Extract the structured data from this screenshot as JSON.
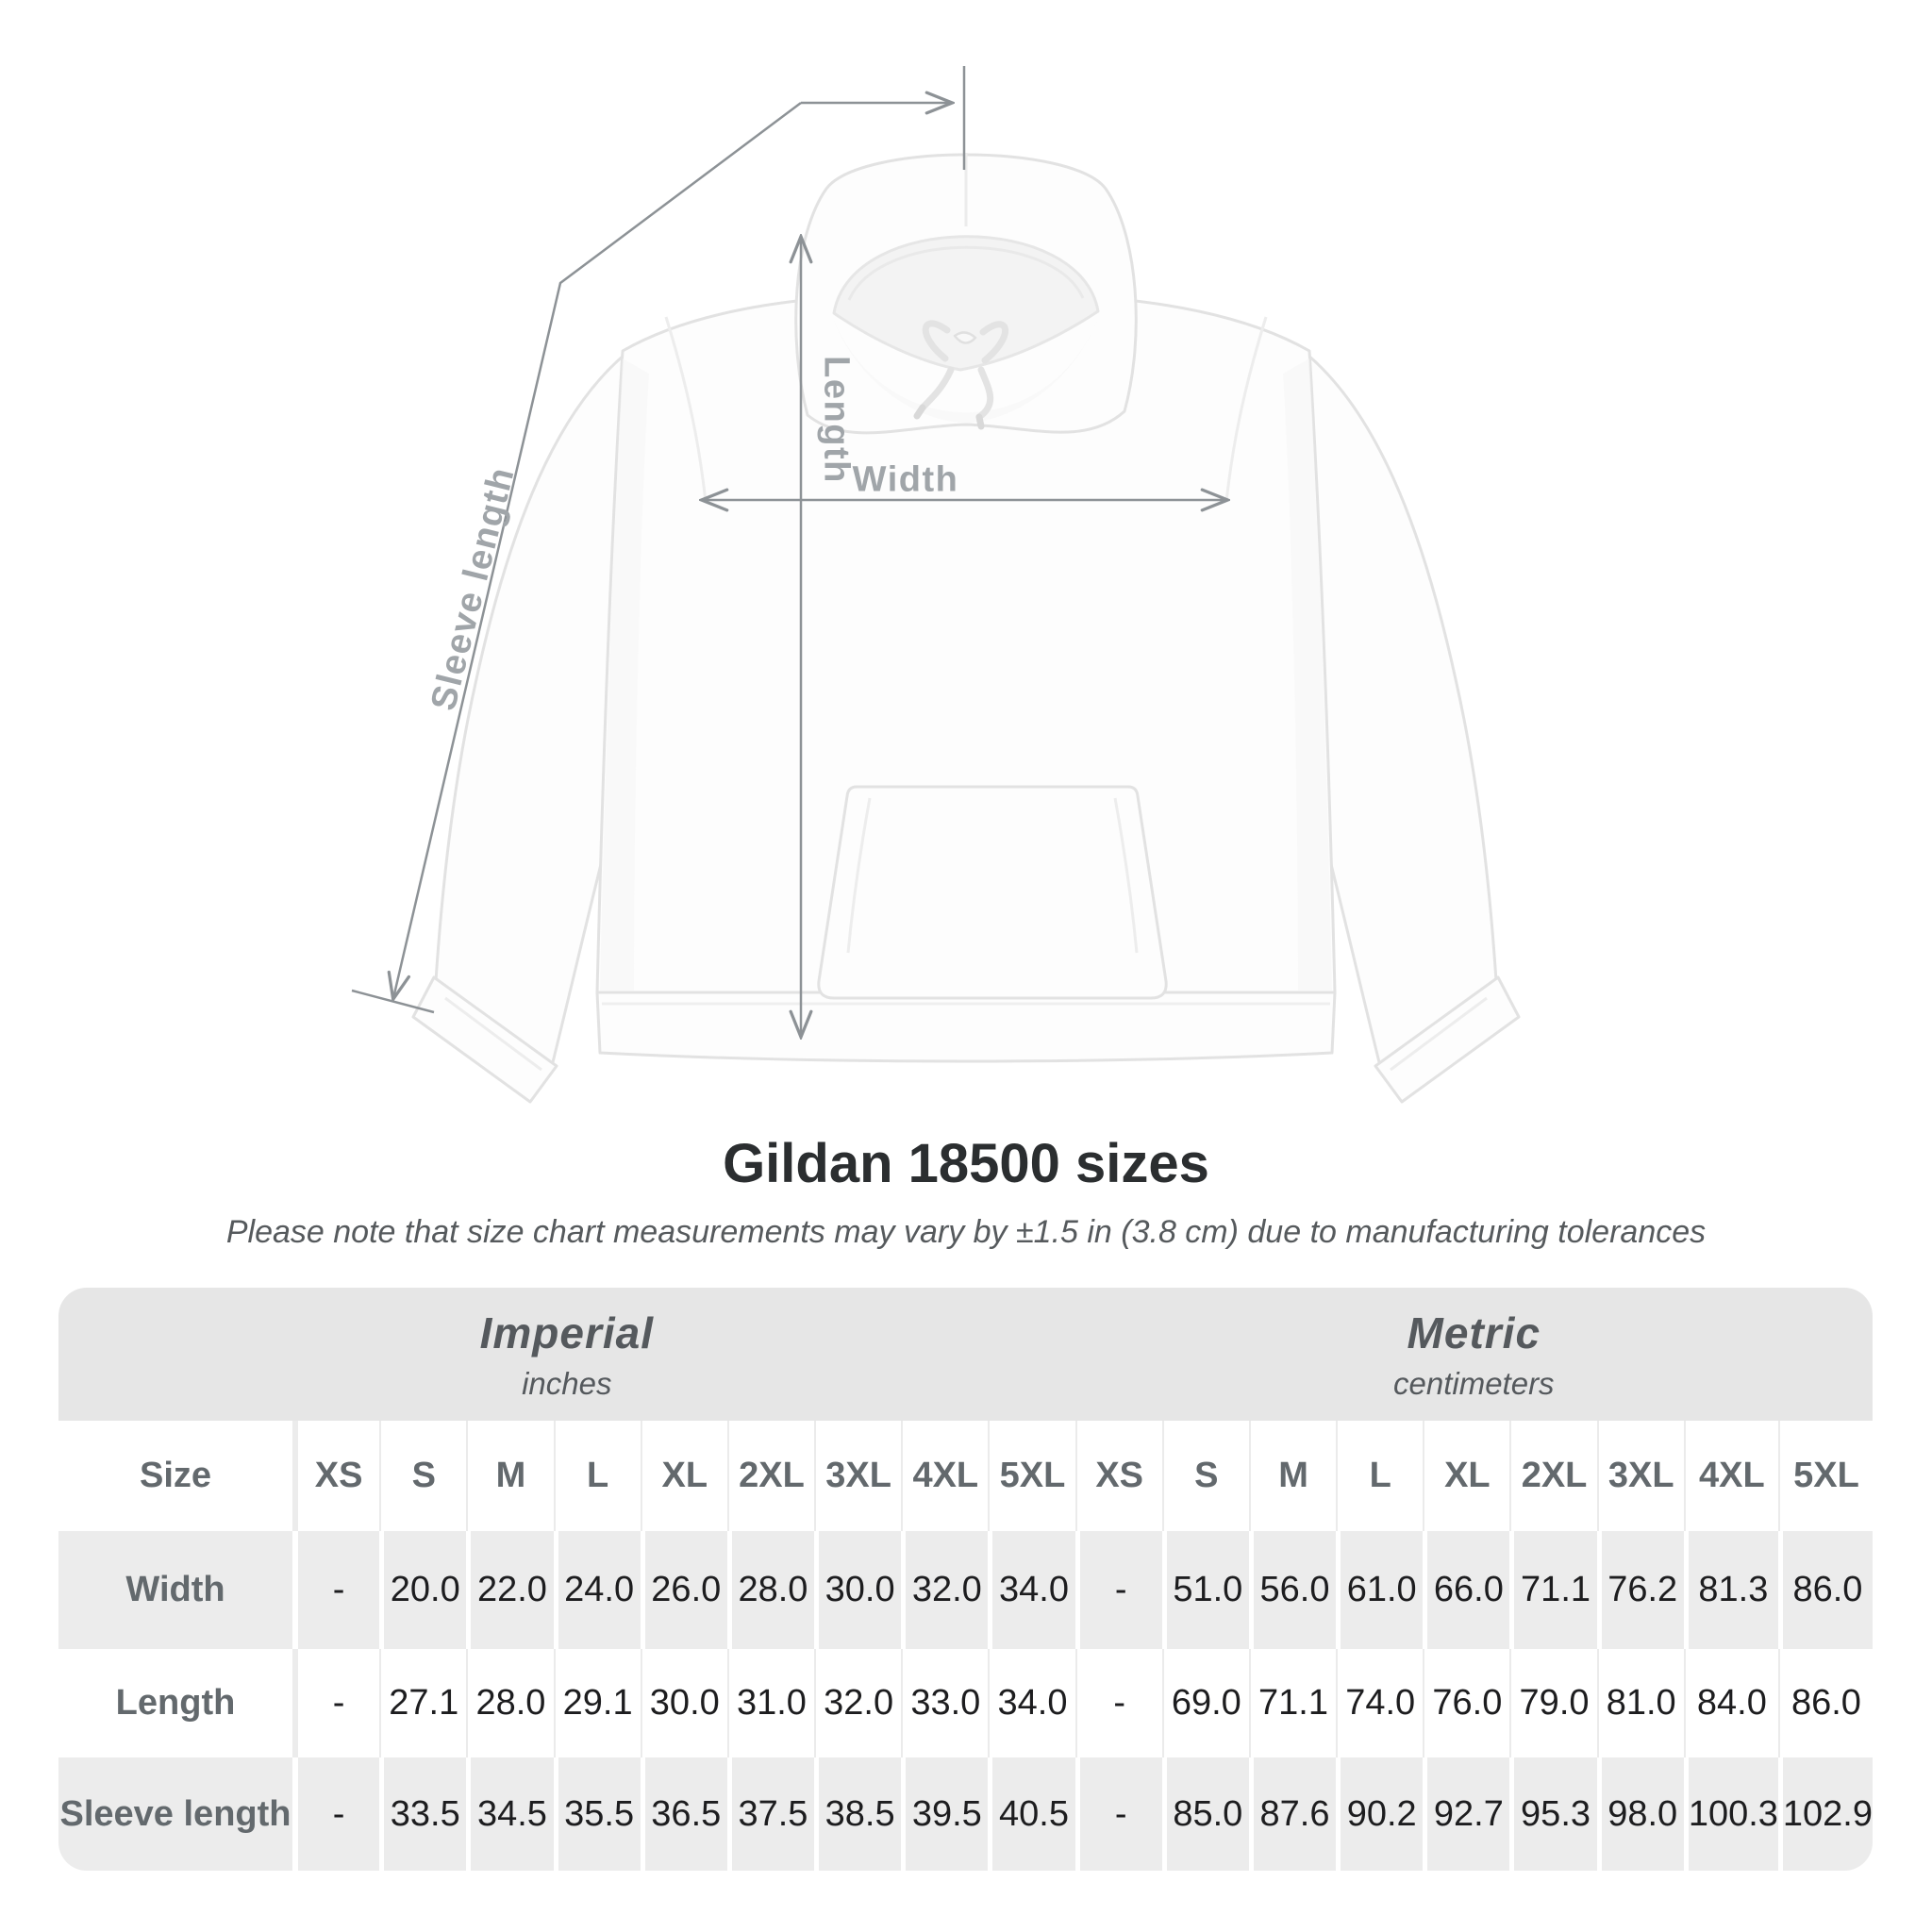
{
  "title": "Gildan 18500 sizes",
  "subtitle": "Please note that size chart measurements may vary by ±1.5 in (3.8 cm) due to manufacturing tolerances",
  "diagram": {
    "length_label": "Length",
    "width_label": "Width",
    "sleeve_label": "Sleeve length",
    "line_color": "#8d9296",
    "label_color": "#a0a5a9"
  },
  "table": {
    "size_label": "Size",
    "groups": [
      {
        "name": "Imperial",
        "unit": "inches"
      },
      {
        "name": "Metric",
        "unit": "centimeters"
      }
    ],
    "sizes_imperial": [
      "XS",
      "S",
      "M",
      "L",
      "XL",
      "2XL",
      "3XL",
      "4XL",
      "5XL"
    ],
    "sizes_metric": [
      "XS",
      "S",
      "M",
      "L",
      "XL",
      "2XL",
      "3XL",
      "4XL",
      "5XL"
    ],
    "rows": [
      {
        "label": "Width",
        "imperial": [
          "-",
          "20.0",
          "22.0",
          "24.0",
          "26.0",
          "28.0",
          "30.0",
          "32.0",
          "34.0"
        ],
        "metric": [
          "-",
          "51.0",
          "56.0",
          "61.0",
          "66.0",
          "71.1",
          "76.2",
          "81.3",
          "86.0"
        ]
      },
      {
        "label": "Length",
        "imperial": [
          "-",
          "27.1",
          "28.0",
          "29.1",
          "30.0",
          "31.0",
          "32.0",
          "33.0",
          "34.0"
        ],
        "metric": [
          "-",
          "69.0",
          "71.1",
          "74.0",
          "76.0",
          "79.0",
          "81.0",
          "84.0",
          "86.0"
        ]
      },
      {
        "label": "Sleeve length",
        "imperial": [
          "-",
          "33.5",
          "34.5",
          "35.5",
          "36.5",
          "37.5",
          "38.5",
          "39.5",
          "40.5"
        ],
        "metric": [
          "-",
          "85.0",
          "87.6",
          "90.2",
          "92.7",
          "95.3",
          "98.0",
          "100.3",
          "102.9"
        ]
      }
    ],
    "colors": {
      "band": "#e6e6e6",
      "stripe": "#ececec",
      "header_text": "#63696d",
      "value_text": "#1d1d1f"
    }
  },
  "chart_data": {
    "type": "table",
    "title": "Gildan 18500 sizes",
    "tolerance_note": "±1.5 in (3.8 cm)",
    "units": [
      "inches",
      "centimeters"
    ],
    "sizes": [
      "XS",
      "S",
      "M",
      "L",
      "XL",
      "2XL",
      "3XL",
      "4XL",
      "5XL"
    ],
    "measurements": {
      "Width": {
        "inches": [
          null,
          20.0,
          22.0,
          24.0,
          26.0,
          28.0,
          30.0,
          32.0,
          34.0
        ],
        "centimeters": [
          null,
          51.0,
          56.0,
          61.0,
          66.0,
          71.1,
          76.2,
          81.3,
          86.0
        ]
      },
      "Length": {
        "inches": [
          null,
          27.1,
          28.0,
          29.1,
          30.0,
          31.0,
          32.0,
          33.0,
          34.0
        ],
        "centimeters": [
          null,
          69.0,
          71.1,
          74.0,
          76.0,
          79.0,
          81.0,
          84.0,
          86.0
        ]
      },
      "Sleeve length": {
        "inches": [
          null,
          33.5,
          34.5,
          35.5,
          36.5,
          37.5,
          38.5,
          39.5,
          40.5
        ],
        "centimeters": [
          null,
          85.0,
          87.6,
          90.2,
          92.7,
          95.3,
          98.0,
          100.3,
          102.9
        ]
      }
    }
  }
}
